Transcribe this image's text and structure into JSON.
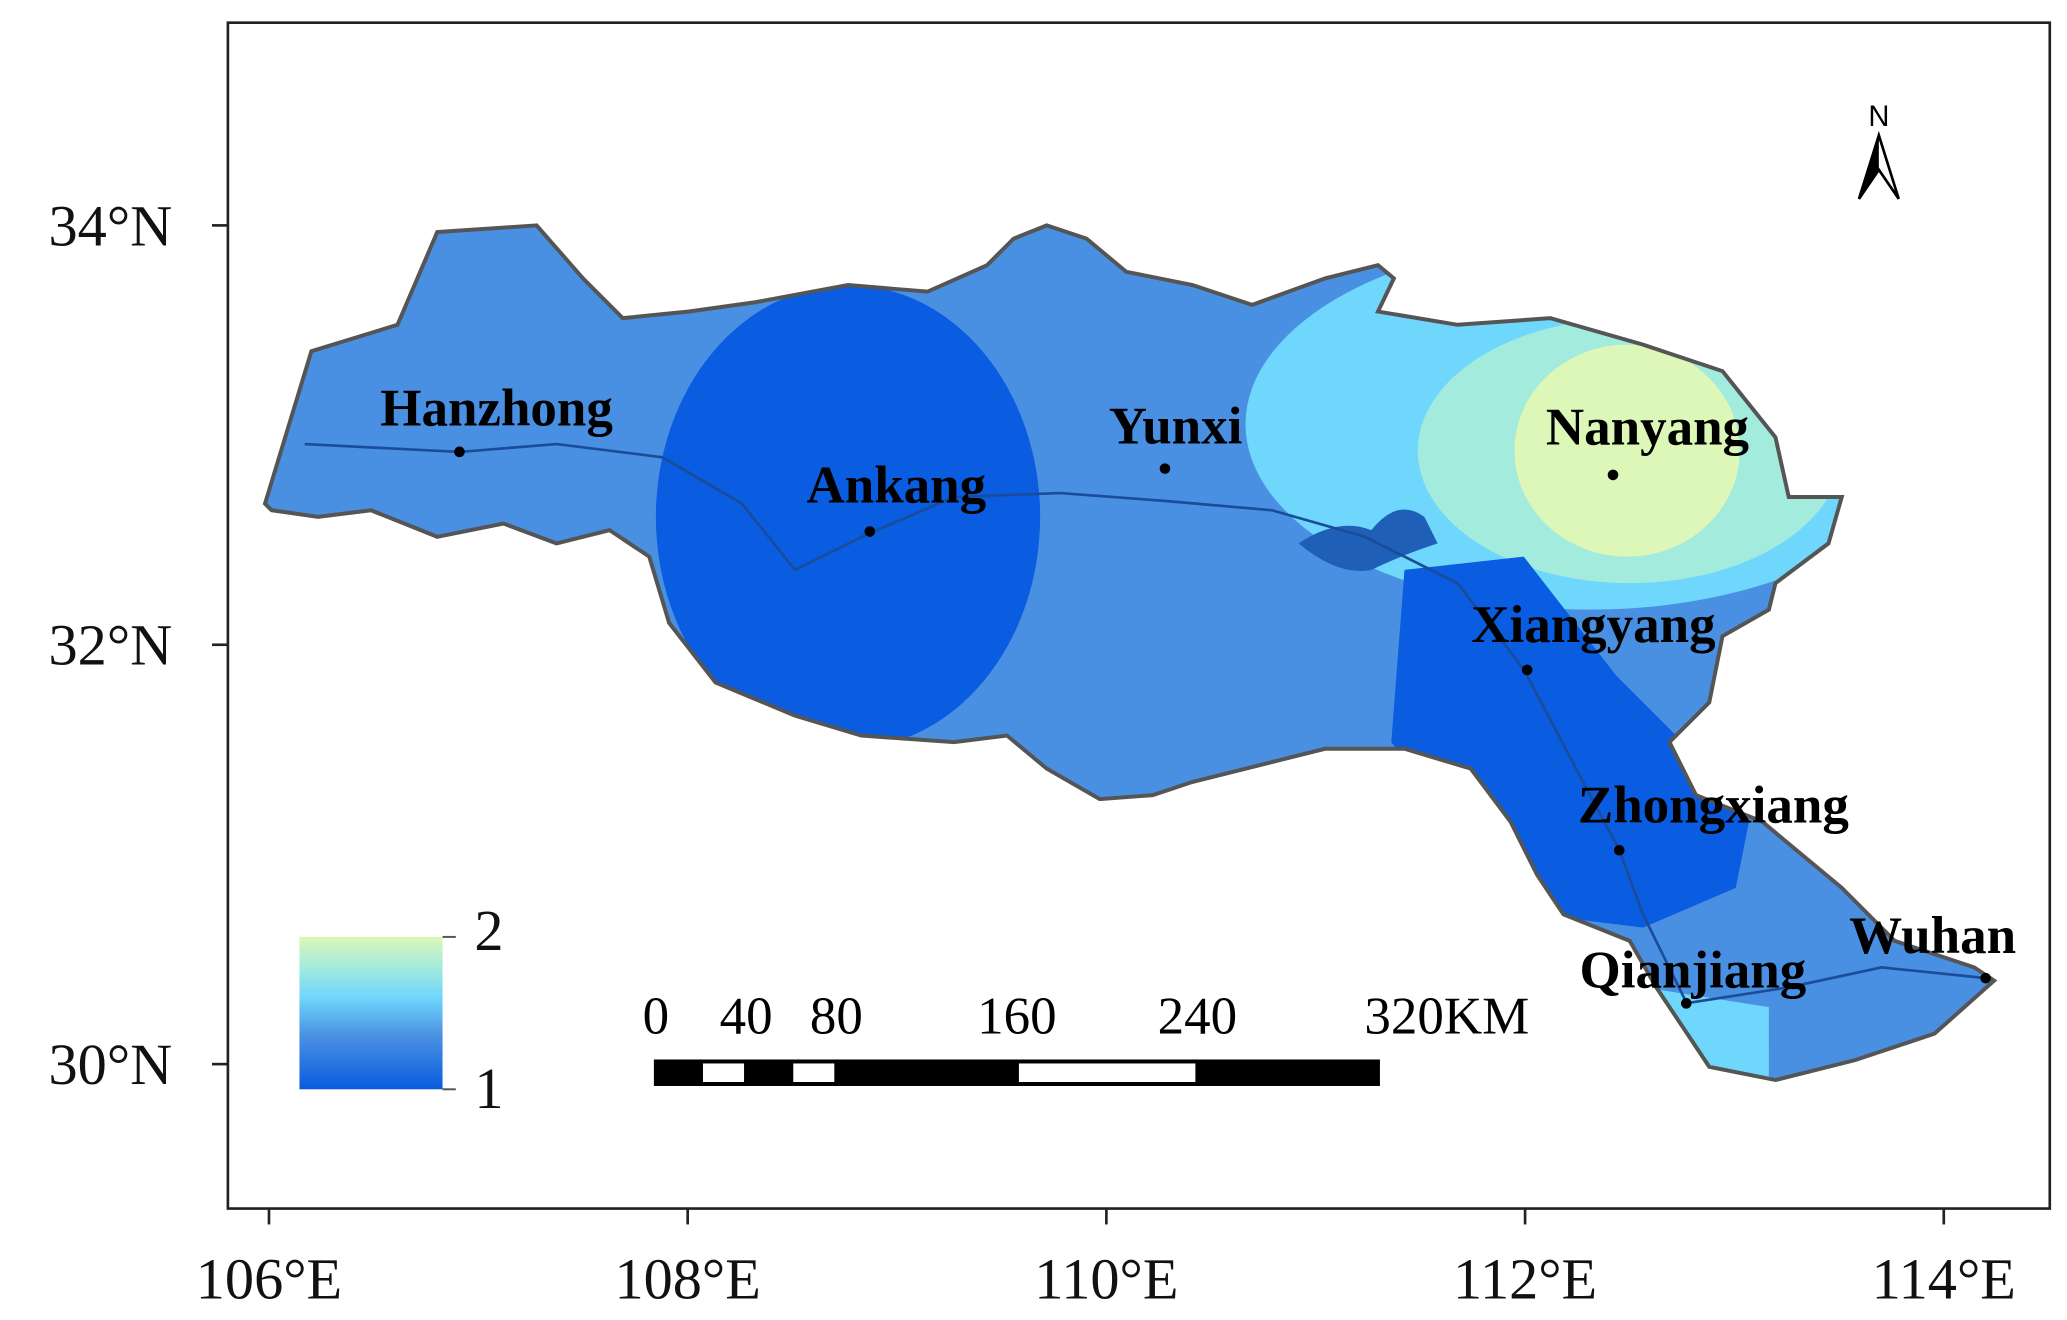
{
  "map": {
    "xticks": [
      {
        "value": 106,
        "label": "106°E"
      },
      {
        "value": 108,
        "label": "108°E"
      },
      {
        "value": 110,
        "label": "110°E"
      },
      {
        "value": 112,
        "label": "112°E"
      },
      {
        "value": 114,
        "label": "114°E"
      }
    ],
    "yticks": [
      {
        "value": 30,
        "label": "30°N"
      },
      {
        "value": 32,
        "label": "32°N"
      },
      {
        "value": 34,
        "label": "34°N"
      }
    ],
    "cities": [
      {
        "name": "Hanzhong",
        "lon": 106.91,
        "lat": 32.92
      },
      {
        "name": "Ankang",
        "lon": 108.87,
        "lat": 32.54
      },
      {
        "name": "Yunxi",
        "lon": 110.28,
        "lat": 32.84
      },
      {
        "name": "Nanyang",
        "lon": 112.42,
        "lat": 32.81
      },
      {
        "name": "Xiangyang",
        "lon": 112.01,
        "lat": 31.88
      },
      {
        "name": "Zhongxiang",
        "lon": 112.45,
        "lat": 31.02
      },
      {
        "name": "Qianjiang",
        "lon": 112.77,
        "lat": 30.29
      },
      {
        "name": "Wuhan",
        "lon": 114.2,
        "lat": 30.41
      }
    ],
    "legend_ticks": [
      1,
      2
    ],
    "scale_bar_ticks": [
      0,
      40,
      80,
      160,
      240,
      {
        "value": 320,
        "label": "320KM"
      }
    ],
    "north": "N"
  }
}
